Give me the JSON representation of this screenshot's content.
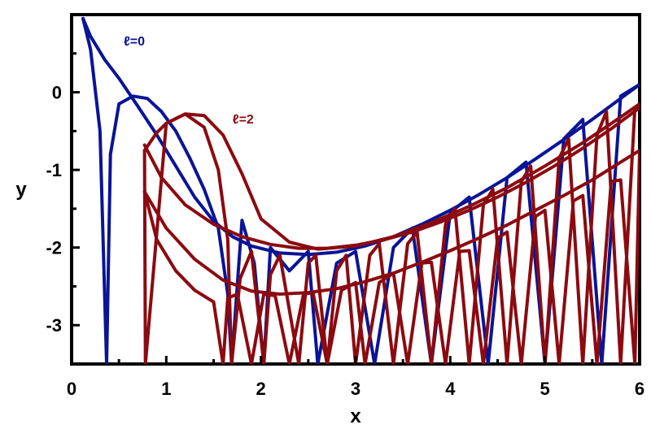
{
  "chart_data": {
    "type": "line",
    "xlabel": "x",
    "ylabel": "y",
    "xlim": [
      0,
      6
    ],
    "ylim": [
      -3.5,
      1.0
    ],
    "x_ticks": [
      {
        "value": 0,
        "label": "0"
      },
      {
        "value": 1,
        "label": "1"
      },
      {
        "value": 2,
        "label": "2"
      },
      {
        "value": 3,
        "label": "3"
      },
      {
        "value": 4,
        "label": "4"
      },
      {
        "value": 5,
        "label": "5"
      },
      {
        "value": 6,
        "label": "6"
      }
    ],
    "y_ticks": [
      {
        "value": 0,
        "label": "0"
      },
      {
        "value": -1,
        "label": "-1"
      },
      {
        "value": -2,
        "label": "-2"
      },
      {
        "value": -3,
        "label": "-3"
      }
    ],
    "grid": false,
    "legend": "none",
    "annotations": [
      {
        "text": "ℓ=0",
        "x": 0.55,
        "y": 0.6
      },
      {
        "text": "ℓ=2",
        "x": 1.7,
        "y": -0.4
      }
    ],
    "series": [
      {
        "color": "#0a1496",
        "role": "envelope",
        "x": [
          0.12,
          0.2,
          0.35,
          0.5,
          0.7,
          0.9,
          1.1,
          1.3,
          1.5,
          1.7,
          1.9,
          2.2,
          2.5,
          2.8,
          3.1,
          3.4,
          3.7,
          4.0,
          4.3,
          4.6,
          4.9,
          5.2,
          5.5,
          5.8,
          6.0
        ],
        "y": [
          0.95,
          0.72,
          0.42,
          0.18,
          -0.18,
          -0.55,
          -0.95,
          -1.35,
          -1.66,
          -1.86,
          -1.98,
          -2.07,
          -2.09,
          -2.06,
          -1.98,
          -1.86,
          -1.7,
          -1.52,
          -1.32,
          -1.1,
          -0.86,
          -0.61,
          -0.35,
          -0.08,
          0.1
        ]
      },
      {
        "color": "#0a1496",
        "role": "oscillation",
        "x": [
          0.12,
          0.2,
          0.3,
          0.37,
          0.41,
          0.5,
          0.65,
          0.8,
          0.95,
          1.1,
          1.25,
          1.4,
          1.55,
          1.65,
          1.69,
          1.8,
          1.93,
          2.03,
          2.1,
          2.3,
          2.5,
          2.6,
          2.8,
          3.0,
          3.2,
          3.4,
          3.6,
          3.8,
          4.0,
          4.2,
          4.4,
          4.6,
          4.8,
          5.0,
          5.2,
          5.4,
          5.6,
          5.8,
          6.0
        ],
        "y": [
          0.95,
          0.55,
          -0.5,
          -3.5,
          -0.8,
          -0.15,
          -0.05,
          -0.08,
          -0.25,
          -0.5,
          -0.85,
          -1.25,
          -1.75,
          -2.6,
          -3.5,
          -1.65,
          -2.2,
          -3.5,
          -2.0,
          -2.3,
          -2.05,
          -3.5,
          -2.2,
          -2.05,
          -3.5,
          -2.0,
          -1.75,
          -3.5,
          -1.55,
          -1.35,
          -3.5,
          -1.1,
          -0.9,
          -3.5,
          -0.6,
          -0.35,
          -3.5,
          -0.05,
          0.1
        ]
      },
      {
        "color": "#8b0a10",
        "role": "envelope",
        "x": [
          0.77,
          0.9,
          1.0,
          1.2,
          1.4,
          1.6,
          1.8,
          2.0,
          2.3,
          2.6,
          3.0,
          3.4,
          3.8,
          4.2,
          4.6,
          5.0,
          5.4,
          5.8,
          6.0
        ],
        "y": [
          -0.75,
          -0.52,
          -0.4,
          -0.28,
          -0.3,
          -0.55,
          -1.05,
          -1.63,
          -1.93,
          -2.02,
          -1.98,
          -1.86,
          -1.68,
          -1.47,
          -1.23,
          -0.95,
          -0.65,
          -0.32,
          -0.15
        ]
      },
      {
        "color": "#8b0a10",
        "role": "envelope",
        "x": [
          0.77,
          1.0,
          1.3,
          1.6,
          1.9,
          2.2,
          2.5,
          2.8,
          3.1,
          3.4,
          3.7,
          4.0,
          4.3,
          4.6,
          4.9,
          5.2,
          5.5,
          5.8,
          6.0
        ],
        "y": [
          -1.28,
          -1.75,
          -2.15,
          -2.42,
          -2.56,
          -2.6,
          -2.58,
          -2.53,
          -2.44,
          -2.33,
          -2.19,
          -2.04,
          -1.88,
          -1.71,
          -1.52,
          -1.33,
          -1.13,
          -0.9,
          -0.75
        ]
      },
      {
        "color": "#8b0a10",
        "role": "envelope",
        "x": [
          0.77,
          0.95,
          1.2,
          1.5,
          1.8,
          2.1,
          2.4,
          2.7,
          3.0,
          3.3,
          3.6,
          3.9,
          4.2,
          4.5,
          4.8,
          5.1,
          5.4,
          5.7,
          6.0
        ],
        "y": [
          -0.68,
          -1.1,
          -1.45,
          -1.7,
          -1.86,
          -1.96,
          -2.01,
          -2.01,
          -1.97,
          -1.9,
          -1.8,
          -1.67,
          -1.52,
          -1.35,
          -1.16,
          -0.95,
          -0.72,
          -0.47,
          -0.2
        ]
      },
      {
        "color": "#8b0a10",
        "role": "oscillation",
        "x": [
          0.77,
          0.78,
          1.0,
          1.2,
          1.4,
          1.55,
          1.65,
          1.69,
          1.78,
          1.9,
          2.03,
          2.1,
          2.2,
          2.4,
          2.5,
          2.58,
          2.7,
          2.8,
          2.9,
          3.0,
          3.15,
          3.25,
          3.4,
          3.55,
          3.65,
          3.8,
          3.95,
          4.05,
          4.2,
          4.35,
          4.45,
          4.6,
          4.75,
          4.85,
          5.0,
          5.15,
          5.25,
          5.4,
          5.55,
          5.65,
          5.8,
          5.95,
          6.0
        ],
        "y": [
          -0.75,
          -3.5,
          -0.4,
          -0.28,
          -0.45,
          -1.0,
          -1.9,
          -3.5,
          -2.4,
          -2.05,
          -3.5,
          -2.35,
          -2.1,
          -3.5,
          -2.2,
          -2.1,
          -3.5,
          -2.3,
          -2.1,
          -3.5,
          -2.1,
          -1.95,
          -3.5,
          -1.95,
          -1.8,
          -3.5,
          -1.7,
          -1.5,
          -3.5,
          -1.45,
          -1.25,
          -3.5,
          -1.15,
          -0.95,
          -3.5,
          -0.85,
          -0.6,
          -3.5,
          -0.55,
          -0.25,
          -3.5,
          -0.2,
          -0.15
        ]
      },
      {
        "color": "#8b0a10",
        "role": "oscillation",
        "x": [
          0.77,
          0.9,
          1.1,
          1.3,
          1.5,
          1.6,
          1.65,
          1.75,
          1.9,
          2.03,
          2.15,
          2.3,
          2.45,
          2.55,
          2.7,
          2.85,
          3.0,
          3.1,
          3.25,
          3.4,
          3.55,
          3.7,
          3.8,
          3.95,
          4.1,
          4.2,
          4.35,
          4.5,
          4.6,
          4.75,
          4.9,
          5.0,
          5.15,
          5.3,
          5.4,
          5.55,
          5.7,
          5.8,
          5.95,
          6.0
        ],
        "y": [
          -1.28,
          -1.9,
          -2.3,
          -2.55,
          -2.7,
          -3.5,
          -2.65,
          -2.6,
          -3.5,
          -2.6,
          -2.62,
          -3.5,
          -2.6,
          -2.58,
          -3.5,
          -2.55,
          -2.45,
          -3.5,
          -2.45,
          -2.33,
          -3.5,
          -2.2,
          -2.19,
          -3.5,
          -2.05,
          -2.04,
          -3.5,
          -1.88,
          -1.8,
          -3.5,
          -1.6,
          -1.52,
          -3.5,
          -1.4,
          -1.33,
          -3.5,
          -1.15,
          -1.13,
          -3.5,
          -0.75
        ]
      }
    ]
  }
}
